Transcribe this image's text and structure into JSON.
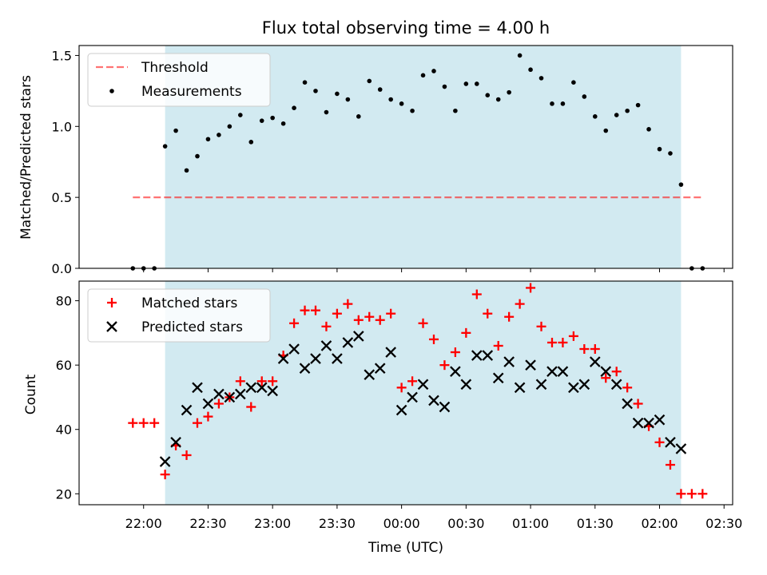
{
  "title": "Flux total observing time = 4.00 h",
  "colors": {
    "background": "#ffffff",
    "shade": "#add8e6",
    "threshold": "#ff0000",
    "measurement": "#000000",
    "matched": "#ff0000",
    "predicted": "#000000"
  },
  "chart_data": [
    {
      "type": "scatter",
      "panel": "top",
      "ylabel": "Matched/Predicted stars",
      "xlabel": "",
      "ylim": [
        0,
        1.57
      ],
      "y_ticks": [
        "0.0",
        "0.5",
        "1.0",
        "1.5"
      ],
      "x_ticks": [
        "22:00",
        "22:30",
        "23:00",
        "23:30",
        "00:00",
        "00:30",
        "01:00",
        "01:30",
        "02:00",
        "02:30"
      ],
      "x_tick_labels_visible": false,
      "legend_position": "upper left",
      "legend": [
        "Threshold",
        "Measurements"
      ],
      "shaded_span": [
        "22:10",
        "02:10"
      ],
      "threshold": {
        "y": 0.5,
        "x_range": [
          "21:55",
          "02:20"
        ],
        "style": "dashed"
      },
      "series": [
        {
          "name": "Measurements",
          "marker": "dot",
          "x": [
            "21:55",
            "21:60",
            "22:05",
            "22:10",
            "22:15",
            "22:20",
            "22:25",
            "22:30",
            "22:35",
            "22:40",
            "22:45",
            "22:50",
            "22:55",
            "23:00",
            "23:05",
            "23:10",
            "23:15",
            "23:20",
            "23:25",
            "23:30",
            "23:35",
            "23:40",
            "23:45",
            "23:50",
            "23:55",
            "00:00",
            "00:05",
            "00:10",
            "00:15",
            "00:20",
            "00:25",
            "00:30",
            "00:35",
            "00:40",
            "00:45",
            "00:50",
            "00:55",
            "01:00",
            "01:05",
            "01:10",
            "01:15",
            "01:20",
            "01:25",
            "01:30",
            "01:35",
            "01:40",
            "01:45",
            "01:50",
            "01:55",
            "02:00",
            "02:05",
            "02:10",
            "02:15",
            "02:20"
          ],
          "y": [
            0,
            0,
            0,
            0.86,
            0.97,
            0.69,
            0.79,
            0.91,
            0.94,
            1.0,
            1.08,
            0.89,
            1.04,
            1.06,
            1.02,
            1.13,
            1.31,
            1.25,
            1.1,
            1.23,
            1.19,
            1.07,
            1.32,
            1.26,
            1.19,
            1.16,
            1.11,
            1.36,
            1.39,
            1.28,
            1.11,
            1.3,
            1.3,
            1.22,
            1.19,
            1.24,
            1.5,
            1.4,
            1.34,
            1.16,
            1.16,
            1.31,
            1.21,
            1.07,
            0.97,
            1.08,
            1.11,
            1.15,
            0.98,
            0.84,
            0.81,
            0.59,
            0,
            0
          ]
        }
      ]
    },
    {
      "type": "scatter",
      "panel": "bottom",
      "ylabel": "Count",
      "xlabel": "Time (UTC)",
      "ylim": [
        16.6,
        86.1
      ],
      "y_ticks": [
        "20",
        "40",
        "60",
        "80"
      ],
      "x_ticks": [
        "22:00",
        "22:30",
        "23:00",
        "23:30",
        "00:00",
        "00:30",
        "01:00",
        "01:30",
        "02:00",
        "02:30"
      ],
      "legend_position": "upper left",
      "legend": [
        "Matched stars",
        "Predicted stars"
      ],
      "shaded_span": [
        "22:10",
        "02:10"
      ],
      "series": [
        {
          "name": "Matched stars",
          "marker": "plus",
          "x": [
            "21:55",
            "21:60",
            "22:05",
            "22:10",
            "22:15",
            "22:20",
            "22:25",
            "22:30",
            "22:35",
            "22:40",
            "22:45",
            "22:50",
            "22:55",
            "23:00",
            "23:05",
            "23:10",
            "23:15",
            "23:20",
            "23:25",
            "23:30",
            "23:35",
            "23:40",
            "23:45",
            "23:50",
            "23:55",
            "00:00",
            "00:05",
            "00:10",
            "00:15",
            "00:20",
            "00:25",
            "00:30",
            "00:35",
            "00:40",
            "00:45",
            "00:50",
            "00:55",
            "01:00",
            "01:05",
            "01:10",
            "01:15",
            "01:20",
            "01:25",
            "01:30",
            "01:35",
            "01:40",
            "01:45",
            "01:50",
            "01:55",
            "02:00",
            "02:05",
            "02:10",
            "02:15",
            "02:20"
          ],
          "y": [
            42,
            42,
            42,
            26,
            35,
            32,
            42,
            44,
            48,
            50,
            55,
            47,
            55,
            55,
            63,
            73,
            77,
            77,
            72,
            76,
            79,
            74,
            75,
            74,
            76,
            53,
            55,
            73,
            68,
            60,
            64,
            70,
            82,
            76,
            66,
            75,
            79,
            84,
            72,
            67,
            67,
            69,
            65,
            65,
            56,
            58,
            53,
            48,
            41,
            36,
            29,
            20,
            20,
            20
          ]
        },
        {
          "name": "Predicted stars",
          "marker": "x",
          "x": [
            "22:10",
            "22:15",
            "22:20",
            "22:25",
            "22:30",
            "22:35",
            "22:40",
            "22:45",
            "22:50",
            "22:55",
            "23:00",
            "23:05",
            "23:10",
            "23:15",
            "23:20",
            "23:25",
            "23:30",
            "23:35",
            "23:40",
            "23:45",
            "23:50",
            "23:55",
            "00:00",
            "00:05",
            "00:10",
            "00:15",
            "00:20",
            "00:25",
            "00:30",
            "00:35",
            "00:40",
            "00:45",
            "00:50",
            "00:55",
            "01:00",
            "01:05",
            "01:10",
            "01:15",
            "01:20",
            "01:25",
            "01:30",
            "01:35",
            "01:40",
            "01:45",
            "01:50",
            "01:55",
            "02:00",
            "02:05",
            "02:10"
          ],
          "y": [
            30,
            36,
            46,
            53,
            48,
            51,
            50,
            51,
            53,
            53,
            52,
            62,
            65,
            59,
            62,
            66,
            62,
            67,
            69,
            57,
            59,
            64,
            46,
            50,
            54,
            49,
            47,
            58,
            54,
            63,
            63,
            56,
            61,
            53,
            60,
            54,
            58,
            58,
            53,
            54,
            61,
            58,
            54,
            48,
            42,
            42,
            43,
            36,
            34
          ]
        }
      ]
    }
  ]
}
